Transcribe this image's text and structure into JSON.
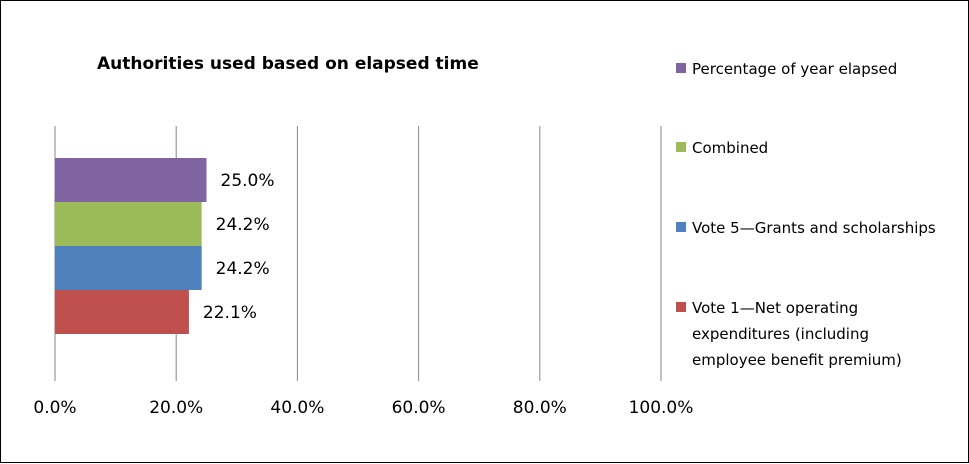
{
  "chart_data": {
    "type": "bar",
    "orientation": "horizontal",
    "title": "Authorities used based on elapsed time",
    "xlabel": "",
    "ylabel": "",
    "xlim": [
      0,
      100
    ],
    "x_ticks": [
      "0.0%",
      "20.0%",
      "40.0%",
      "60.0%",
      "80.0%",
      "100.0%"
    ],
    "grid": "vertical",
    "legend_position": "right",
    "series": [
      {
        "name": "Percentage of year elapsed",
        "value": 25.0,
        "label": "25.0%",
        "color": "#8064A2"
      },
      {
        "name": "Combined",
        "value": 24.2,
        "label": "24.2%",
        "color": "#9BBB59"
      },
      {
        "name": "Vote 5—Grants and scholarships",
        "value": 24.2,
        "label": "24.2%",
        "color": "#4F81BD"
      },
      {
        "name": "Vote 1—Net operating expenditures (including employee benefit premium)",
        "value": 22.1,
        "label": "22.1%",
        "color": "#C0504D"
      }
    ]
  }
}
